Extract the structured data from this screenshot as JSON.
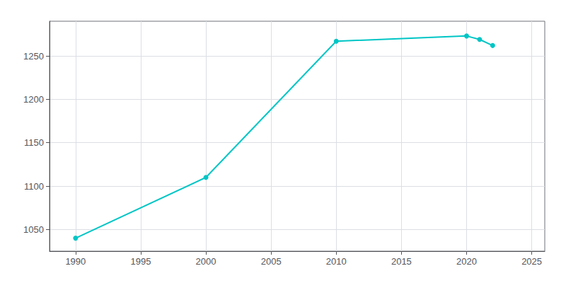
{
  "chart_data": {
    "type": "line",
    "x": [
      1990,
      2000,
      2010,
      2020,
      2021,
      2022
    ],
    "values": [
      1040,
      1110,
      1267,
      1273,
      1269,
      1262
    ],
    "color": "#00C5C5",
    "marker": "circle",
    "xlim": [
      1988,
      2026
    ],
    "ylim": [
      1025,
      1290
    ],
    "xticks": [
      1990,
      1995,
      2000,
      2005,
      2010,
      2015,
      2020,
      2025
    ],
    "yticks": [
      1050,
      1100,
      1150,
      1200,
      1250
    ],
    "grid": true
  }
}
